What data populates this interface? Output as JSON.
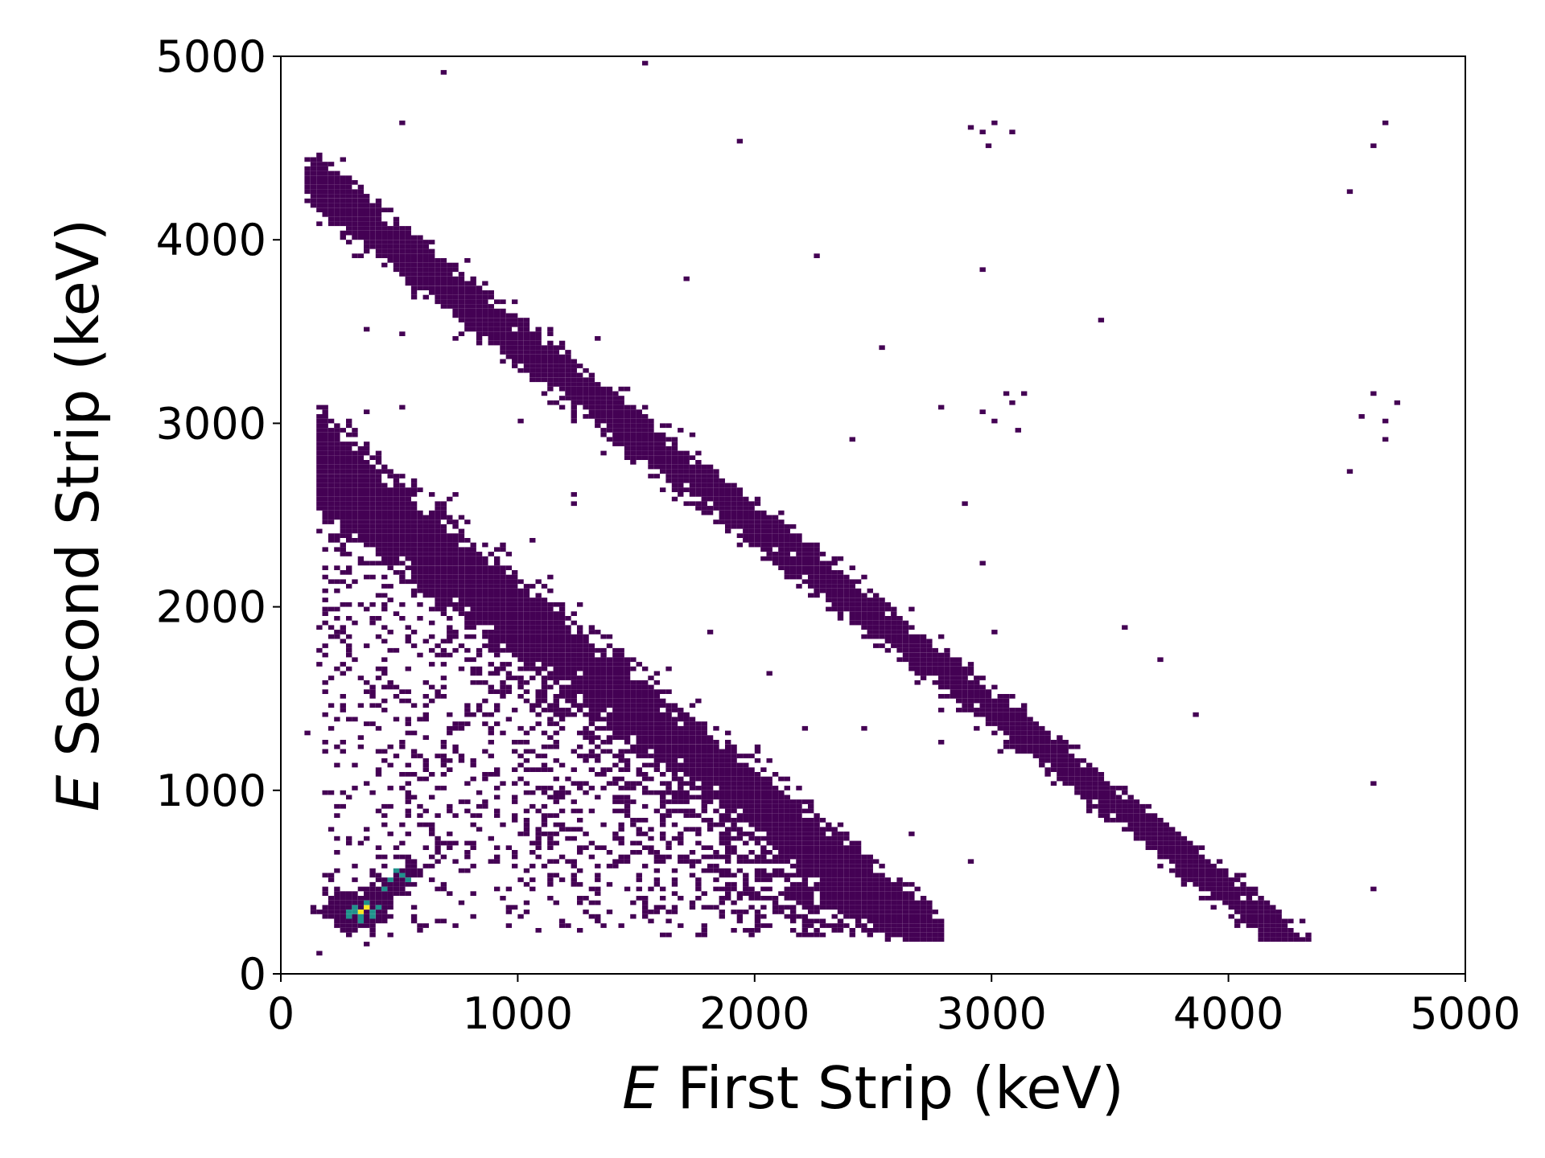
{
  "chart_data": {
    "type": "heatmap",
    "title": "",
    "xlabel_symbol": "E",
    "xlabel_text": " First Strip (keV)",
    "ylabel_symbol": "E",
    "ylabel_text": " Second Strip (keV)",
    "xlim": [
      0,
      5000
    ],
    "ylim": [
      0,
      5000
    ],
    "xticks": [
      0,
      1000,
      2000,
      3000,
      4000,
      5000
    ],
    "yticks": [
      0,
      1000,
      2000,
      3000,
      4000,
      5000
    ],
    "xtick_labels": [
      "0",
      "1000",
      "2000",
      "3000",
      "4000",
      "5000"
    ],
    "ytick_labels": [
      "0",
      "1000",
      "2000",
      "3000",
      "4000",
      "5000"
    ],
    "grid": false,
    "legend": "none",
    "colormap": "viridis",
    "colors": {
      "low": "#440154",
      "mid": "#21918c",
      "high": "#fde725"
    },
    "bands": [
      {
        "name": "upper band",
        "sum_keV": 4450,
        "spread_keV": 70,
        "x_range": [
          120,
          4400
        ],
        "y_range": [
          200,
          4650
        ]
      },
      {
        "name": "lower band",
        "sum_keV": 2950,
        "spread_keV": 110,
        "x_range": [
          170,
          2800
        ],
        "y_range": [
          200,
          2850
        ],
        "diffuse_fill_below": true
      }
    ],
    "hotspot": {
      "center": [
        330,
        340
      ],
      "extent_to": [
        560,
        560
      ],
      "peak_value": "high"
    },
    "isolated_points": [
      [
        680,
        4920
      ],
      [
        1530,
        4950
      ],
      [
        500,
        4640
      ],
      [
        1930,
        4540
      ],
      [
        2900,
        4600
      ],
      [
        2950,
        4580
      ],
      [
        3000,
        4630
      ],
      [
        2980,
        4500
      ],
      [
        3080,
        4580
      ],
      [
        4620,
        4520
      ],
      [
        4650,
        4640
      ],
      [
        4500,
        4260
      ],
      [
        2260,
        3900
      ],
      [
        2950,
        3840
      ],
      [
        1720,
        3790
      ],
      [
        3460,
        3570
      ],
      [
        2540,
        3410
      ],
      [
        3050,
        3150
      ],
      [
        3090,
        3120
      ],
      [
        3140,
        3150
      ],
      [
        2950,
        3070
      ],
      [
        3000,
        3020
      ],
      [
        3100,
        2950
      ],
      [
        2780,
        3090
      ],
      [
        4550,
        3030
      ],
      [
        4600,
        3150
      ],
      [
        4650,
        3010
      ],
      [
        4700,
        3110
      ],
      [
        4660,
        2900
      ],
      [
        2400,
        2900
      ],
      [
        2880,
        2560
      ],
      [
        2960,
        2230
      ],
      [
        4520,
        2730
      ],
      [
        3560,
        1890
      ],
      [
        3000,
        1870
      ],
      [
        3700,
        1720
      ],
      [
        3850,
        1400
      ],
      [
        4600,
        1040
      ],
      [
        2660,
        760
      ],
      [
        2900,
        600
      ],
      [
        4620,
        470
      ],
      [
        120,
        1310
      ],
      [
        180,
        1740
      ],
      [
        170,
        110
      ],
      [
        370,
        3500
      ],
      [
        500,
        3480
      ],
      [
        500,
        3080
      ],
      [
        350,
        3050
      ],
      [
        1340,
        3450
      ],
      [
        1000,
        3000
      ],
      [
        1570,
        2950
      ],
      [
        1830,
        2700
      ],
      [
        1240,
        2550
      ],
      [
        1230,
        2600
      ],
      [
        1060,
        2350
      ],
      [
        600,
        2050
      ],
      [
        2060,
        1630
      ],
      [
        1810,
        1850
      ],
      [
        2520,
        1860
      ],
      [
        2200,
        1340
      ],
      [
        2450,
        1340
      ],
      [
        2780,
        1250
      ]
    ]
  }
}
